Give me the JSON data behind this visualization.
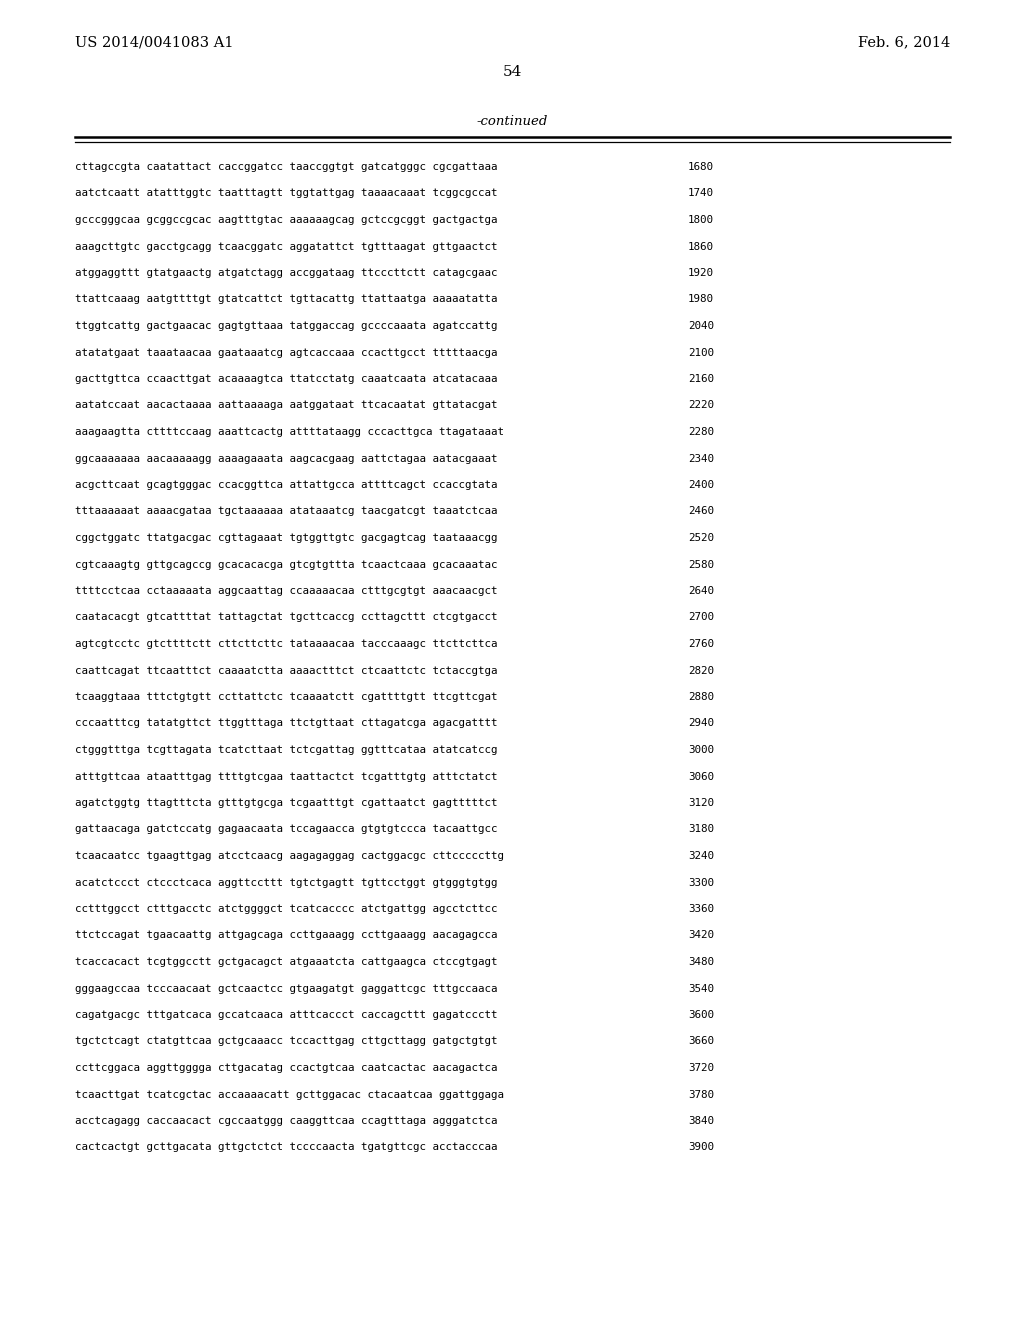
{
  "left_header": "US 2014/0041083 A1",
  "right_header": "Feb. 6, 2014",
  "page_number": "54",
  "continued_text": "-continued",
  "background_color": "#ffffff",
  "text_color": "#000000",
  "sequence_lines": [
    [
      "cttagccgta caatattact caccggatcc taaccggtgt gatcatgggc cgcgattaaa",
      "1680"
    ],
    [
      "aatctcaatt atatttggtc taatttagtt tggtattgag taaaacaaat tcggcgccat",
      "1740"
    ],
    [
      "gcccgggcaa gcggccgcac aagtttgtac aaaaaagcag gctccgcggt gactgactga",
      "1800"
    ],
    [
      "aaagcttgtc gacctgcagg tcaacggatc aggatattct tgtttaagat gttgaactct",
      "1860"
    ],
    [
      "atggaggttt gtatgaactg atgatctagg accggataag ttcccttctt catagcgaac",
      "1920"
    ],
    [
      "ttattcaaag aatgttttgt gtatcattct tgttacattg ttattaatga aaaaatatta",
      "1980"
    ],
    [
      "ttggtcattg gactgaacac gagtgttaaa tatggaccag gccccaaata agatccattg",
      "2040"
    ],
    [
      "atatatgaat taaataacaa gaataaatcg agtcaccaaa ccacttgcct tttttaacga",
      "2100"
    ],
    [
      "gacttgttca ccaacttgat acaaaagtca ttatcctatg caaatcaata atcatacaaa",
      "2160"
    ],
    [
      "aatatccaat aacactaaaa aattaaaaga aatggataat ttcacaatat gttatacgat",
      "2220"
    ],
    [
      "aaagaagtta cttttccaag aaattcactg attttataagg cccacttgca ttagataaat",
      "2280"
    ],
    [
      "ggcaaaaaaa aacaaaaagg aaaagaaata aagcacgaag aattctagaa aatacgaaat",
      "2340"
    ],
    [
      "acgcttcaat gcagtgggac ccacggttca attattgcca attttcagct ccaccgtata",
      "2400"
    ],
    [
      "tttaaaaaat aaaacgataa tgctaaaaaa atataaatcg taacgatcgt taaatctcaa",
      "2460"
    ],
    [
      "cggctggatc ttatgacgac cgttagaaat tgtggttgtc gacgagtcag taataaacgg",
      "2520"
    ],
    [
      "cgtcaaagtg gttgcagccg gcacacacga gtcgtgttta tcaactcaaa gcacaaatac",
      "2580"
    ],
    [
      "ttttcctcaa cctaaaaata aggcaattag ccaaaaacaa ctttgcgtgt aaacaacgct",
      "2640"
    ],
    [
      "caatacacgt gtcattttat tattagctat tgcttcaccg ccttagcttt ctcgtgacct",
      "2700"
    ],
    [
      "agtcgtcctc gtcttttctt cttcttcttc tataaaacaa tacccaaagc ttcttcttca",
      "2760"
    ],
    [
      "caattcagat ttcaatttct caaaatctta aaaactttct ctcaattctc tctaccgtga",
      "2820"
    ],
    [
      "tcaaggtaaa tttctgtgtt ccttattctc tcaaaatctt cgattttgtt ttcgttcgat",
      "2880"
    ],
    [
      "cccaatttcg tatatgttct ttggtttaga ttctgttaat cttagatcga agacgatttt",
      "2940"
    ],
    [
      "ctgggtttga tcgttagata tcatcttaat tctcgattag ggtttcataa atatcatccg",
      "3000"
    ],
    [
      "atttgttcaa ataatttgag ttttgtcgaa taattactct tcgatttgtg atttctatct",
      "3060"
    ],
    [
      "agatctggtg ttagtttcta gtttgtgcga tcgaatttgt cgattaatct gagtttttct",
      "3120"
    ],
    [
      "gattaacaga gatctccatg gagaacaata tccagaacca gtgtgtccca tacaattgcc",
      "3180"
    ],
    [
      "tcaacaatcc tgaagttgag atcctcaacg aagagaggag cactggacgc cttcccccttg",
      "3240"
    ],
    [
      "acatctccct ctccctcaca aggttccttt tgtctgagtt tgttcctggt gtgggtgtgg",
      "3300"
    ],
    [
      "cctttggcct ctttgacctc atctggggct tcatcacccc atctgattgg agcctcttcc",
      "3360"
    ],
    [
      "ttctccagat tgaacaattg attgagcaga ccttgaaagg ccttgaaagg aacagagcca",
      "3420"
    ],
    [
      "tcaccacact tcgtggcctt gctgacagct atgaaatcta cattgaagca ctccgtgagt",
      "3480"
    ],
    [
      "gggaagccaa tcccaacaat gctcaactcc gtgaagatgt gaggattcgc tttgccaaca",
      "3540"
    ],
    [
      "cagatgacgc tttgatcaca gccatcaaca atttcaccct caccagcttt gagatccctt",
      "3600"
    ],
    [
      "tgctctcagt ctatgttcaa gctgcaaacc tccacttgag cttgcttagg gatgctgtgt",
      "3660"
    ],
    [
      "ccttcggaca aggttgggga cttgacatag ccactgtcaa caatcactac aacagactca",
      "3720"
    ],
    [
      "tcaacttgat tcatcgctac accaaaacatt gcttggacac ctacaatcaa ggattggaga",
      "3780"
    ],
    [
      "acctcagagg caccaacact cgccaatggg caaggttcaa ccagtttaga agggatctca",
      "3840"
    ],
    [
      "cactcactgt gcttgacata gttgctctct tccccaacta tgatgttcgc acctacccaa",
      "3900"
    ]
  ]
}
